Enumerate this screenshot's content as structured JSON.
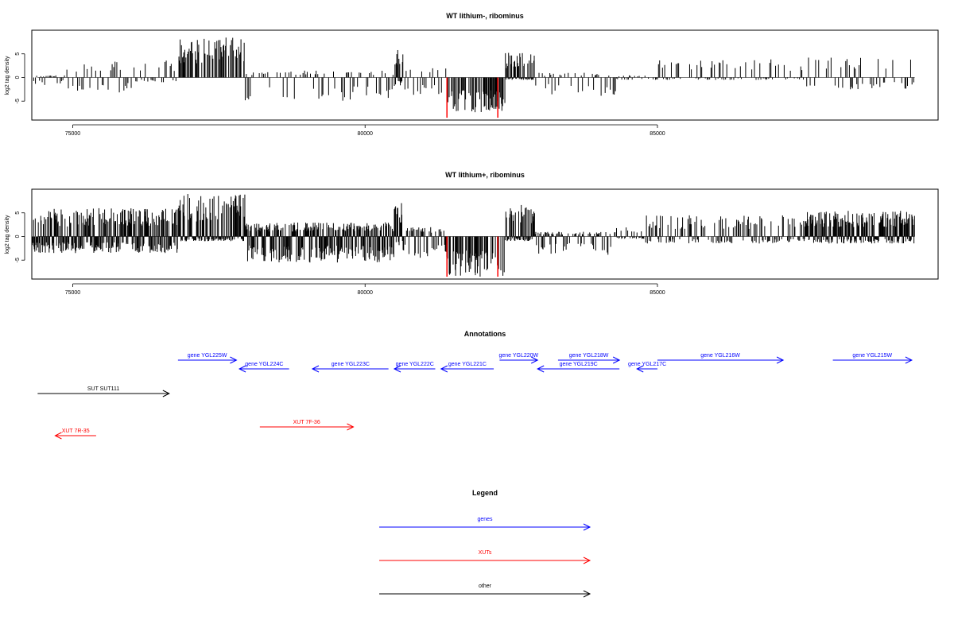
{
  "colors": {
    "genes": "#0000ff",
    "xuts": "#ff0000",
    "other": "#000000",
    "highlight": "#ff0000"
  },
  "chart_data": [
    {
      "type": "bar",
      "title": "WT lithium-, ribominus",
      "ylabel": "log2 tag density",
      "xlim": [
        74300,
        89800
      ],
      "ylim": [
        -9,
        10
      ],
      "xticks": [
        "75000",
        "80000",
        "85000"
      ],
      "yticks": [
        "-5",
        "0",
        "5"
      ],
      "highlight_x": [
        81400,
        82270
      ],
      "series_profile": [
        {
          "x": [
            74300,
            74900
          ],
          "amp_pos": 0.5,
          "amp_neg": 1.6
        },
        {
          "x": [
            74900,
            76000
          ],
          "amp_pos": 3.5,
          "amp_neg": 3.2
        },
        {
          "x": [
            76000,
            76800
          ],
          "amp_pos": 3.8,
          "amp_neg": 1.0
        },
        {
          "x": [
            76800,
            77950
          ],
          "amp_pos": 8.5,
          "amp_neg": 0.0
        },
        {
          "x": [
            77950,
            80500
          ],
          "amp_pos": 1.5,
          "amp_neg": 5.0
        },
        {
          "x": [
            80500,
            80650
          ],
          "amp_pos": 6.5,
          "amp_neg": 2.0
        },
        {
          "x": [
            80650,
            81400
          ],
          "amp_pos": 2.0,
          "amp_neg": 4.0
        },
        {
          "x": [
            81400,
            82400
          ],
          "amp_pos": 0.0,
          "amp_neg": 7.5
        },
        {
          "x": [
            82400,
            82900
          ],
          "amp_pos": 5.5,
          "amp_neg": 0.5
        },
        {
          "x": [
            82900,
            84300
          ],
          "amp_pos": 1.0,
          "amp_neg": 4.0
        },
        {
          "x": [
            84300,
            85000
          ],
          "amp_pos": 0.5,
          "amp_neg": 0.5
        },
        {
          "x": [
            85000,
            87500
          ],
          "amp_pos": 4.0,
          "amp_neg": 0.5
        },
        {
          "x": [
            87500,
            89400
          ],
          "amp_pos": 4.3,
          "amp_neg": 2.5
        }
      ]
    },
    {
      "type": "bar",
      "title": "WT lithium+, ribominus",
      "ylabel": "log2 tag density",
      "xlim": [
        74300,
        89800
      ],
      "ylim": [
        -9,
        10
      ],
      "xticks": [
        "75000",
        "80000",
        "85000"
      ],
      "yticks": [
        "-5",
        "0",
        "5"
      ],
      "highlight_x": [
        81400,
        82270
      ],
      "series_profile": [
        {
          "x": [
            74300,
            76800
          ],
          "amp_pos": 6.0,
          "amp_neg": 3.5
        },
        {
          "x": [
            76800,
            77950
          ],
          "amp_pos": 9.0,
          "amp_neg": 1.0
        },
        {
          "x": [
            77950,
            80500
          ],
          "amp_pos": 3.0,
          "amp_neg": 5.5
        },
        {
          "x": [
            80500,
            80650
          ],
          "amp_pos": 7.5,
          "amp_neg": 2.0
        },
        {
          "x": [
            80650,
            81400
          ],
          "amp_pos": 2.0,
          "amp_neg": 4.5
        },
        {
          "x": [
            81400,
            82400
          ],
          "amp_pos": 0.0,
          "amp_neg": 8.5
        },
        {
          "x": [
            82400,
            82900
          ],
          "amp_pos": 7.0,
          "amp_neg": 1.0
        },
        {
          "x": [
            82900,
            84300
          ],
          "amp_pos": 1.0,
          "amp_neg": 4.0
        },
        {
          "x": [
            84300,
            84800
          ],
          "amp_pos": 2.0,
          "amp_neg": 0.5
        },
        {
          "x": [
            84800,
            87500
          ],
          "amp_pos": 4.5,
          "amp_neg": 1.5
        },
        {
          "x": [
            87500,
            89400
          ],
          "amp_pos": 5.5,
          "amp_neg": 1.5
        }
      ]
    }
  ],
  "annotations": {
    "title": "Annotations",
    "features": [
      {
        "label": "gene YGL225W",
        "type": "gene",
        "dir": "right",
        "start": 76800,
        "end": 77800
      },
      {
        "label": "gene YGL224C",
        "type": "gene",
        "dir": "left",
        "start": 77850,
        "end": 78700
      },
      {
        "label": "gene YGL223C",
        "type": "gene",
        "dir": "left",
        "start": 79100,
        "end": 80400
      },
      {
        "label": "gene YGL222C",
        "type": "gene",
        "dir": "left",
        "start": 80500,
        "end": 81200
      },
      {
        "label": "gene YGL221C",
        "type": "gene",
        "dir": "left",
        "start": 81300,
        "end": 82200
      },
      {
        "label": "gene YGL220W",
        "type": "gene",
        "dir": "right",
        "start": 82300,
        "end": 82950
      },
      {
        "label": "gene YGL219C",
        "type": "gene",
        "dir": "left",
        "start": 82950,
        "end": 84350
      },
      {
        "label": "gene YGL218W",
        "type": "gene",
        "dir": "right",
        "start": 83300,
        "end": 84350
      },
      {
        "label": "gene YGL217C",
        "type": "gene",
        "dir": "left",
        "start": 84650,
        "end": 85000
      },
      {
        "label": "gene YGL216W",
        "type": "gene",
        "dir": "right",
        "start": 85000,
        "end": 87150
      },
      {
        "label": "gene YGL215W",
        "type": "gene",
        "dir": "right",
        "start": 88000,
        "end": 89350
      },
      {
        "label": "SUT SUT111",
        "type": "other",
        "dir": "right",
        "start": 74400,
        "end": 76650
      },
      {
        "label": "XUT 7F-36",
        "type": "xut",
        "dir": "right",
        "start": 78200,
        "end": 79800
      },
      {
        "label": "XUT 7R-35",
        "type": "xut",
        "dir": "left",
        "start": 74700,
        "end": 75400
      }
    ]
  },
  "legend": {
    "title": "Legend",
    "items": [
      {
        "label": "genes",
        "type": "gene"
      },
      {
        "label": "XUTs",
        "type": "xut"
      },
      {
        "label": "other",
        "type": "other"
      }
    ]
  }
}
